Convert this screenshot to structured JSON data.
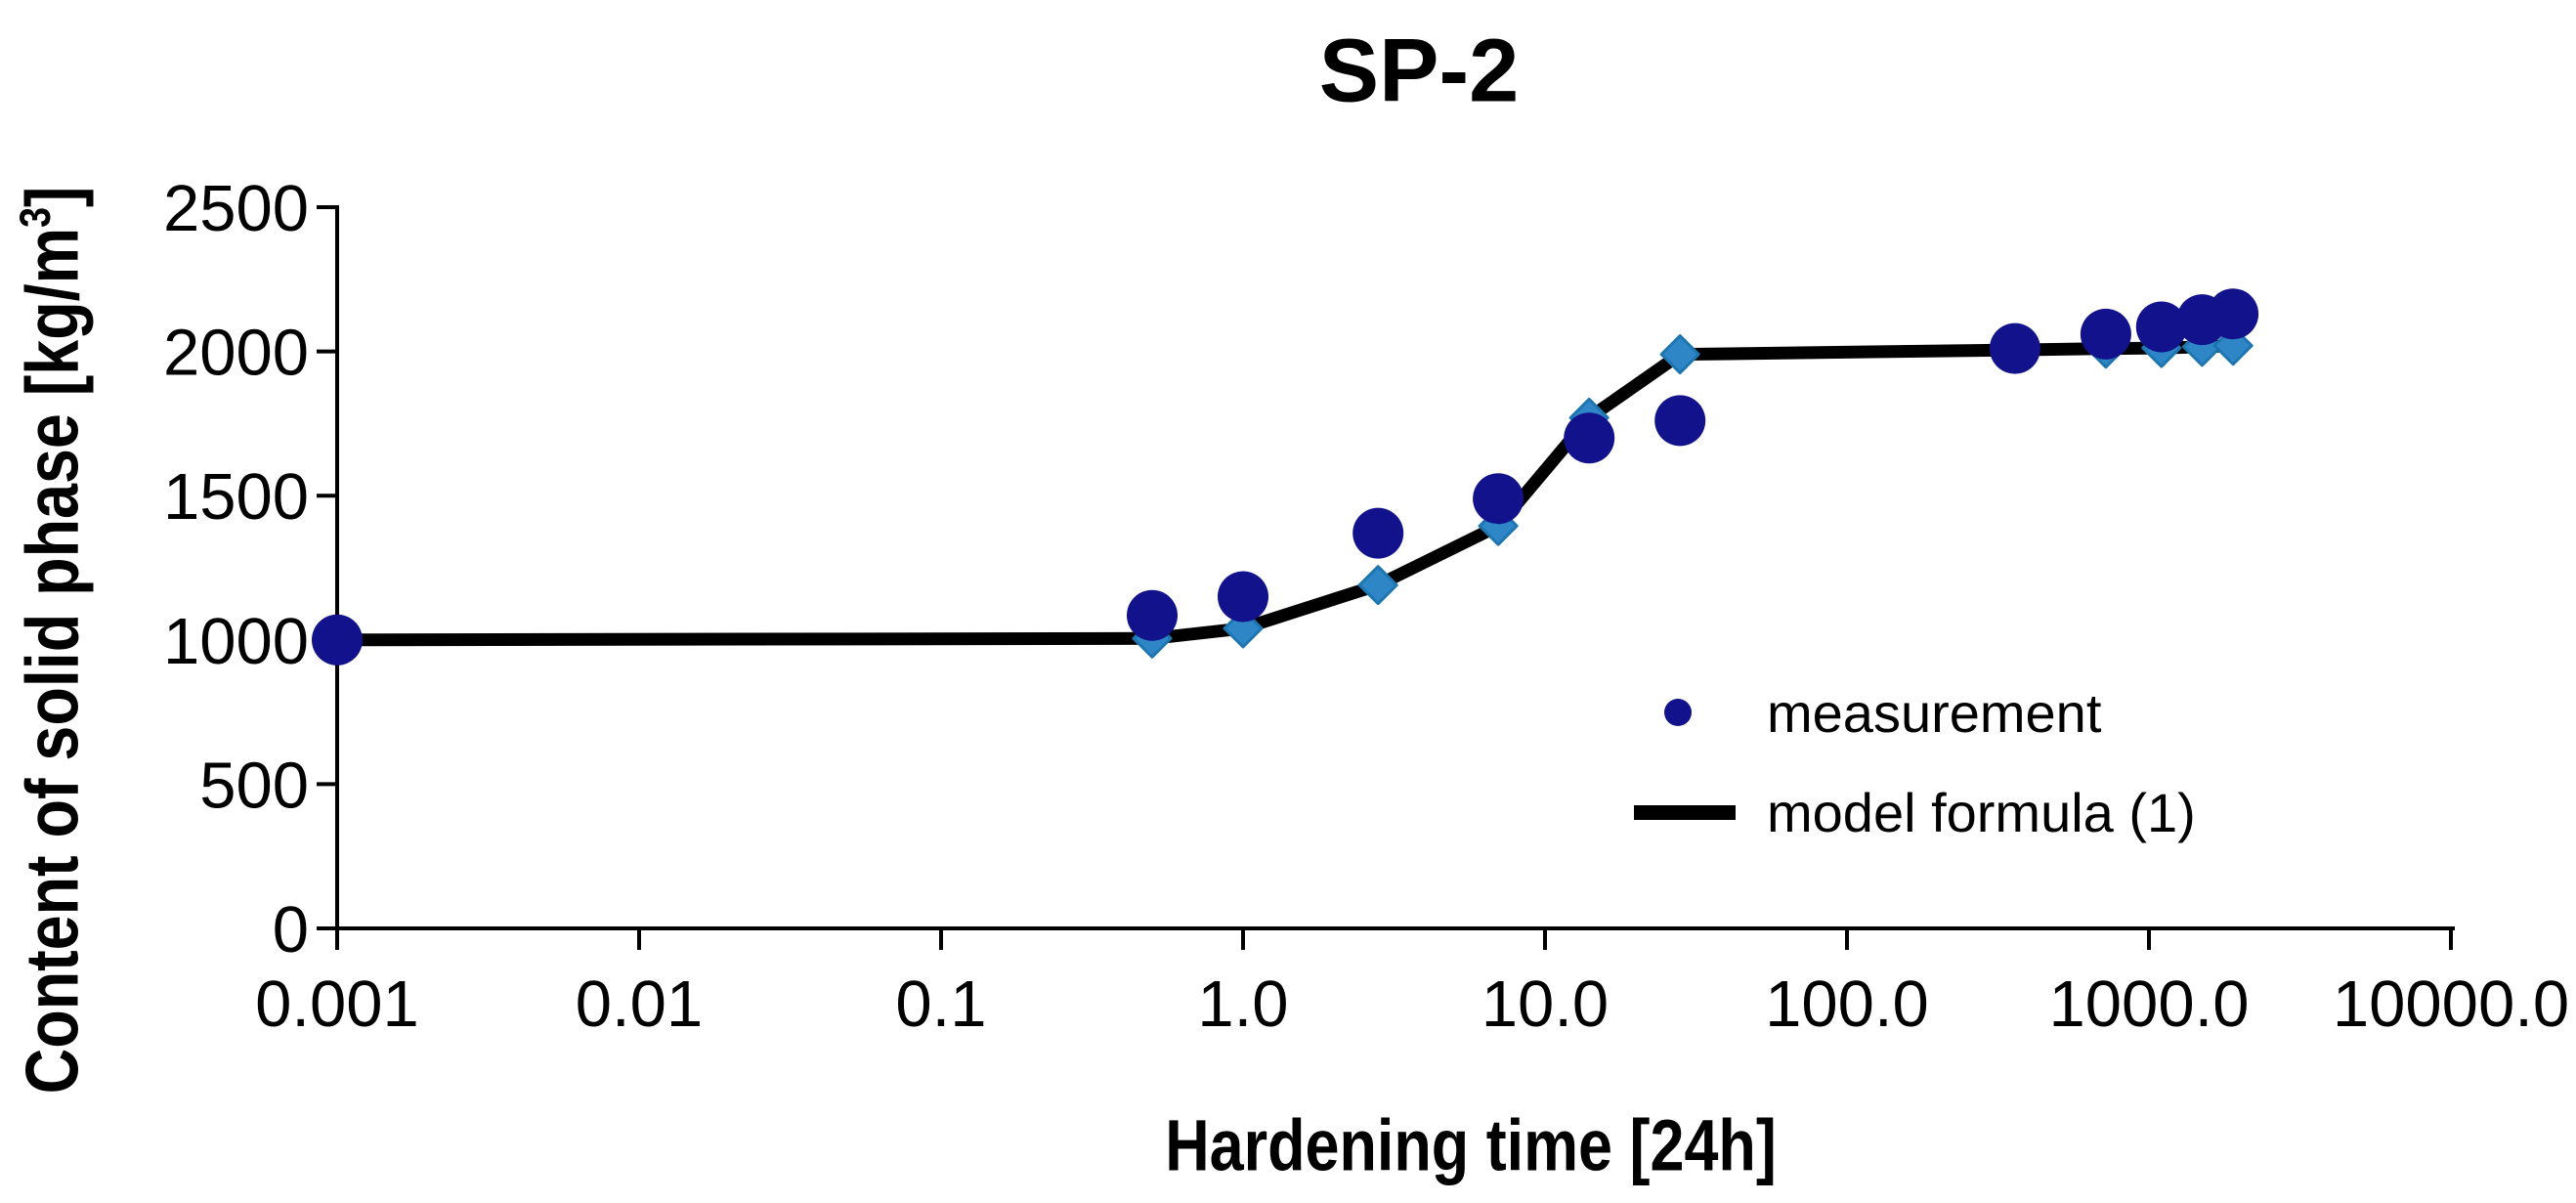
{
  "chart_data": {
    "type": "line+scatter",
    "title": "SP-2",
    "xlabel": "Hardening time [24h]",
    "ylabel": "Content of solid phase [kg/m³]",
    "ylabel_parts": [
      "Content of solid phase [kg/m",
      "3",
      "]"
    ],
    "x_axis": {
      "scale": "log",
      "min": 0.001,
      "max": 10000,
      "ticks": [
        {
          "value": 0.001,
          "label": "0.001"
        },
        {
          "value": 0.01,
          "label": "0.01"
        },
        {
          "value": 0.1,
          "label": "0.1"
        },
        {
          "value": 1.0,
          "label": "1.0"
        },
        {
          "value": 10.0,
          "label": "10.0"
        },
        {
          "value": 100.0,
          "label": "100.0"
        },
        {
          "value": 1000.0,
          "label": "1000.0"
        },
        {
          "value": 10000.0,
          "label": "10000.0"
        }
      ]
    },
    "y_axis": {
      "min": 0,
      "max": 2500,
      "ticks": [
        0,
        500,
        1000,
        1500,
        2000,
        2500
      ]
    },
    "grid": false,
    "legend_position": "inside-right",
    "series": [
      {
        "name": "measurement",
        "type": "scatter",
        "marker": "circle",
        "color": "#12128C",
        "points": [
          [
            0.001,
            1000
          ],
          [
            0.5,
            1085
          ],
          [
            1.0,
            1150
          ],
          [
            2.8,
            1370
          ],
          [
            7,
            1490
          ],
          [
            14,
            1700
          ],
          [
            28,
            1760
          ],
          [
            360,
            2010
          ],
          [
            720,
            2060
          ],
          [
            1100,
            2085
          ],
          [
            1500,
            2110
          ],
          [
            1900,
            2130
          ]
        ]
      },
      {
        "name": "model formula (1)",
        "type": "line",
        "color": "#000000",
        "marker": "diamond",
        "marker_color": "#2E86C6",
        "marker_stroke": "#1E76B0",
        "points": [
          [
            0.001,
            1000
          ],
          [
            0.5,
            1005
          ],
          [
            1.0,
            1040
          ],
          [
            2.8,
            1190
          ],
          [
            7,
            1395
          ],
          [
            14,
            1770
          ],
          [
            28,
            1990
          ],
          [
            360,
            2005
          ],
          [
            720,
            2010
          ],
          [
            1100,
            2012
          ],
          [
            1500,
            2016
          ],
          [
            1900,
            2020
          ]
        ]
      }
    ]
  }
}
